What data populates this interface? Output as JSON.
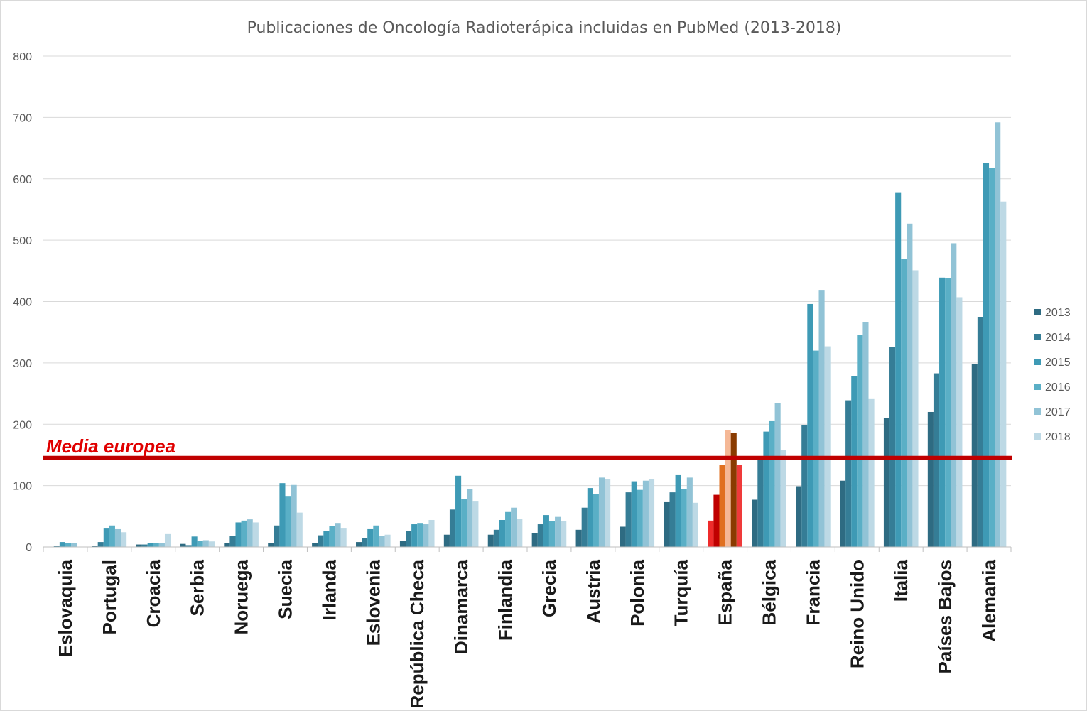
{
  "chart_data": {
    "type": "bar",
    "title": "Publicaciones de Oncología Radioterápica incluidas en PubMed (2013-2018)",
    "xlabel": "",
    "ylabel": "",
    "ylim": [
      0,
      800
    ],
    "yticks": [
      "0",
      "100",
      "200",
      "300",
      "400",
      "500",
      "600",
      "700",
      "800"
    ],
    "grid": true,
    "legend_position": "right",
    "categories": [
      "Eslovaquia",
      "Portugal",
      "Croacia",
      "Serbia",
      "Noruega",
      "Suecia",
      "Irlanda",
      "Eslovenia",
      "República Checa",
      "Dinamarca",
      "Finlandia",
      "Grecia",
      "Austria",
      "Polonia",
      "Turquía",
      "España",
      "Bélgica",
      "Francia",
      "Reino Unido",
      "Italia",
      "Países Bajos",
      "Alemania"
    ],
    "series": [
      {
        "name": "2013",
        "color": "#2e6b82",
        "values": [
          0,
          2,
          4,
          5,
          6,
          6,
          6,
          8,
          10,
          20,
          20,
          23,
          28,
          33,
          73,
          43,
          77,
          99,
          108,
          210,
          220,
          298
        ]
      },
      {
        "name": "2014",
        "color": "#357d96",
        "values": [
          2,
          8,
          4,
          3,
          18,
          35,
          19,
          14,
          26,
          61,
          28,
          37,
          64,
          89,
          89,
          85,
          147,
          198,
          239,
          326,
          283,
          375
        ]
      },
      {
        "name": "2015",
        "color": "#3e9ab5",
        "values": [
          8,
          30,
          6,
          17,
          40,
          104,
          26,
          29,
          37,
          116,
          44,
          52,
          96,
          107,
          117,
          134,
          188,
          396,
          279,
          577,
          439,
          626
        ]
      },
      {
        "name": "2016",
        "color": "#5aafc6",
        "values": [
          6,
          35,
          6,
          10,
          43,
          82,
          34,
          35,
          38,
          78,
          57,
          42,
          86,
          93,
          94,
          191,
          205,
          320,
          345,
          469,
          438,
          618
        ]
      },
      {
        "name": "2017",
        "color": "#91c3d6",
        "values": [
          6,
          29,
          6,
          11,
          45,
          101,
          38,
          18,
          37,
          94,
          64,
          49,
          113,
          108,
          113,
          186,
          234,
          419,
          366,
          527,
          495,
          692
        ]
      },
      {
        "name": "2018",
        "color": "#bdd9e5",
        "values": [
          0,
          24,
          21,
          9,
          40,
          56,
          30,
          20,
          44,
          74,
          46,
          42,
          111,
          110,
          72,
          134,
          158,
          327,
          241,
          451,
          407,
          563
        ]
      }
    ],
    "highlight": {
      "category": "España",
      "colors": [
        "#ef2b2b",
        "#c00000",
        "#e07020",
        "#f5b896",
        "#8a3b00",
        "#ef3a3a"
      ]
    },
    "reference_line": {
      "label": "Media europea",
      "value": 145,
      "color": "#c00000",
      "label_color": "#e00000"
    }
  }
}
